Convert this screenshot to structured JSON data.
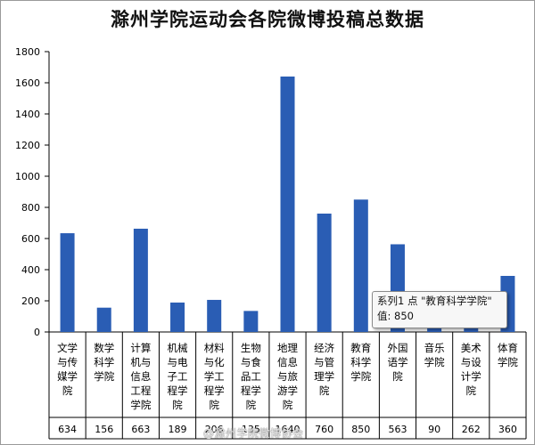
{
  "chart_data": {
    "type": "bar",
    "title": "滁州学院运动会各院微博投稿总数据",
    "ylim": [
      0,
      1800
    ],
    "yticks": [
      0,
      200,
      400,
      600,
      800,
      1000,
      1200,
      1400,
      1600,
      1800
    ],
    "categories": [
      [
        "文学",
        "与传",
        "媒学",
        "院"
      ],
      [
        "数学",
        "科学",
        "学院"
      ],
      [
        "计算",
        "机与",
        "信息",
        "工程",
        "学院"
      ],
      [
        "机械",
        "与电",
        "子工",
        "程学",
        "院"
      ],
      [
        "材料",
        "与化",
        "学工",
        "程学",
        "院"
      ],
      [
        "生物",
        "与食",
        "品工",
        "程学",
        "院"
      ],
      [
        "地理",
        "信息",
        "与旅",
        "游学",
        "院"
      ],
      [
        "经济",
        "与管",
        "理学",
        "院"
      ],
      [
        "教育",
        "科学",
        "学院"
      ],
      [
        "外国",
        "语学",
        "院"
      ],
      [
        "音乐",
        "学院"
      ],
      [
        "美术",
        "与设",
        "计学",
        "院"
      ],
      [
        "体育",
        "学院"
      ]
    ],
    "series": [
      {
        "values": [
          634,
          156,
          663,
          189,
          206,
          135,
          1640,
          760,
          850,
          563,
          90,
          262,
          360
        ],
        "color": "#2a5db4"
      }
    ],
    "table_values": [
      "634",
      "156",
      "663",
      "189",
      "206",
      "135",
      "1640",
      "760",
      "850",
      "563",
      "90",
      "262",
      "360"
    ],
    "grid": false,
    "legend": "none"
  },
  "tooltip": {
    "line1": "系列1 点 \"教育科学学院\"",
    "line2": "值: 850"
  },
  "watermark": "@滁州学院微博协会"
}
